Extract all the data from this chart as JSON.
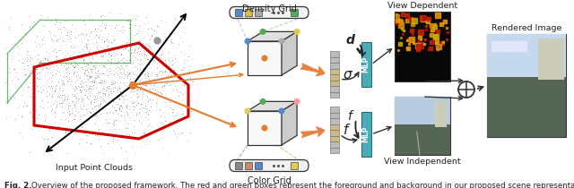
{
  "fig_width": 6.4,
  "fig_height": 2.1,
  "dpi": 100,
  "bg_color": "#ffffff",
  "caption_prefix": "Fig. 2.",
  "caption_text": "Overview of the proposed framework. The red and green boxes represent the foreground and background in our proposed scene representation.",
  "caption_fontsize": 6.2,
  "label_input": "Input Point Clouds",
  "label_density": "Density Grid",
  "label_color": "Color Grid",
  "label_view_dep": "View Dependent",
  "label_view_indep": "View Independent",
  "label_rendered": "Rendered Image",
  "label_sigma": "σ",
  "label_f": "f",
  "label_d": "d",
  "label_mlp": "MLP",
  "teal_color": "#4AACB8",
  "orange_color": "#E87A30",
  "red_color": "#CC0000",
  "green_color": "#44AA44",
  "density_strip_colors": [
    "#5588CC",
    "#DDBB44",
    "#AAAAAA",
    "#55AA55"
  ],
  "color_strip_colors": [
    "#888888",
    "#CC8866",
    "#5588CC",
    "#DDCC55"
  ],
  "cube_dot_colors_density": [
    "#5588CC",
    "#AAAAAA",
    "#55AA55",
    "#DDCC44",
    "#E87A30"
  ],
  "cube_dot_colors_color": [
    "#DDCC55",
    "#5588CC",
    "#55AA55",
    "#FF9999",
    "#E87A30"
  ],
  "feat_colors": [
    "#CCCCCC",
    "#CCCCCC",
    "#CCCCCC",
    "#DDCC88",
    "#DDCC88",
    "#DDCC88",
    "#CCCCCC",
    "#CCCCCC"
  ]
}
